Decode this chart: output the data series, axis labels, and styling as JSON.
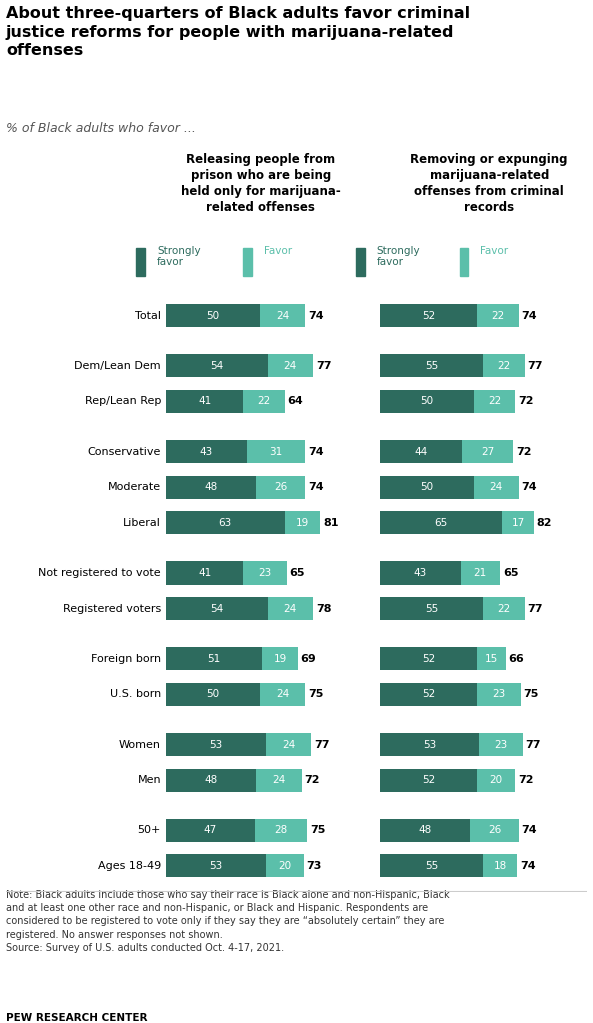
{
  "title": "About three-quarters of Black adults favor criminal\njustice reforms for people with marijuana-related\noffenses",
  "subtitle": "% of Black adults who favor ...",
  "col1_header": "Releasing people from\nprison who are being\nheld only for marijuana-\nrelated offenses",
  "col2_header": "Removing or expunging\nmarijuana-related\noffenses from criminal\nrecords",
  "legend_strongly": "Strongly\nfavor",
  "legend_favor": "Favor",
  "color_strongly": "#2d6b5e",
  "color_favor": "#5bbfaa",
  "categories": [
    "Total",
    "Rep/Lean Rep",
    "Dem/Lean Dem",
    "Liberal",
    "Moderate",
    "Conservative",
    "Registered voters",
    "Not registered to vote",
    "U.S. born",
    "Foreign born",
    "Men",
    "Women",
    "Ages 18-49",
    "50+"
  ],
  "group_separators": [
    0,
    1,
    3,
    6,
    8,
    10,
    12
  ],
  "col1_strongly": [
    50,
    41,
    54,
    63,
    48,
    43,
    54,
    41,
    50,
    51,
    48,
    53,
    53,
    47
  ],
  "col1_favor": [
    24,
    22,
    24,
    19,
    26,
    31,
    24,
    23,
    24,
    19,
    24,
    24,
    20,
    28
  ],
  "col1_total": [
    74,
    64,
    77,
    81,
    74,
    74,
    78,
    65,
    75,
    69,
    72,
    77,
    73,
    75
  ],
  "col2_strongly": [
    52,
    50,
    55,
    65,
    50,
    44,
    55,
    43,
    52,
    52,
    52,
    53,
    55,
    48
  ],
  "col2_favor": [
    22,
    22,
    22,
    17,
    24,
    27,
    22,
    21,
    23,
    15,
    20,
    23,
    18,
    26
  ],
  "col2_total": [
    74,
    72,
    77,
    82,
    74,
    72,
    77,
    65,
    75,
    66,
    72,
    77,
    74,
    74
  ],
  "note": "Note: Black adults include those who say their race is Black alone and non-Hispanic, Black\nand at least one other race and non-Hispanic, or Black and Hispanic. Respondents are\nconsidered to be registered to vote only if they say they are “absolutely certain” they are\nregistered. No answer responses not shown.\nSource: Survey of U.S. adults conducted Oct. 4-17, 2021.",
  "source_bold": "PEW RESEARCH CENTER",
  "bar_height": 0.55,
  "bar_max": 85
}
